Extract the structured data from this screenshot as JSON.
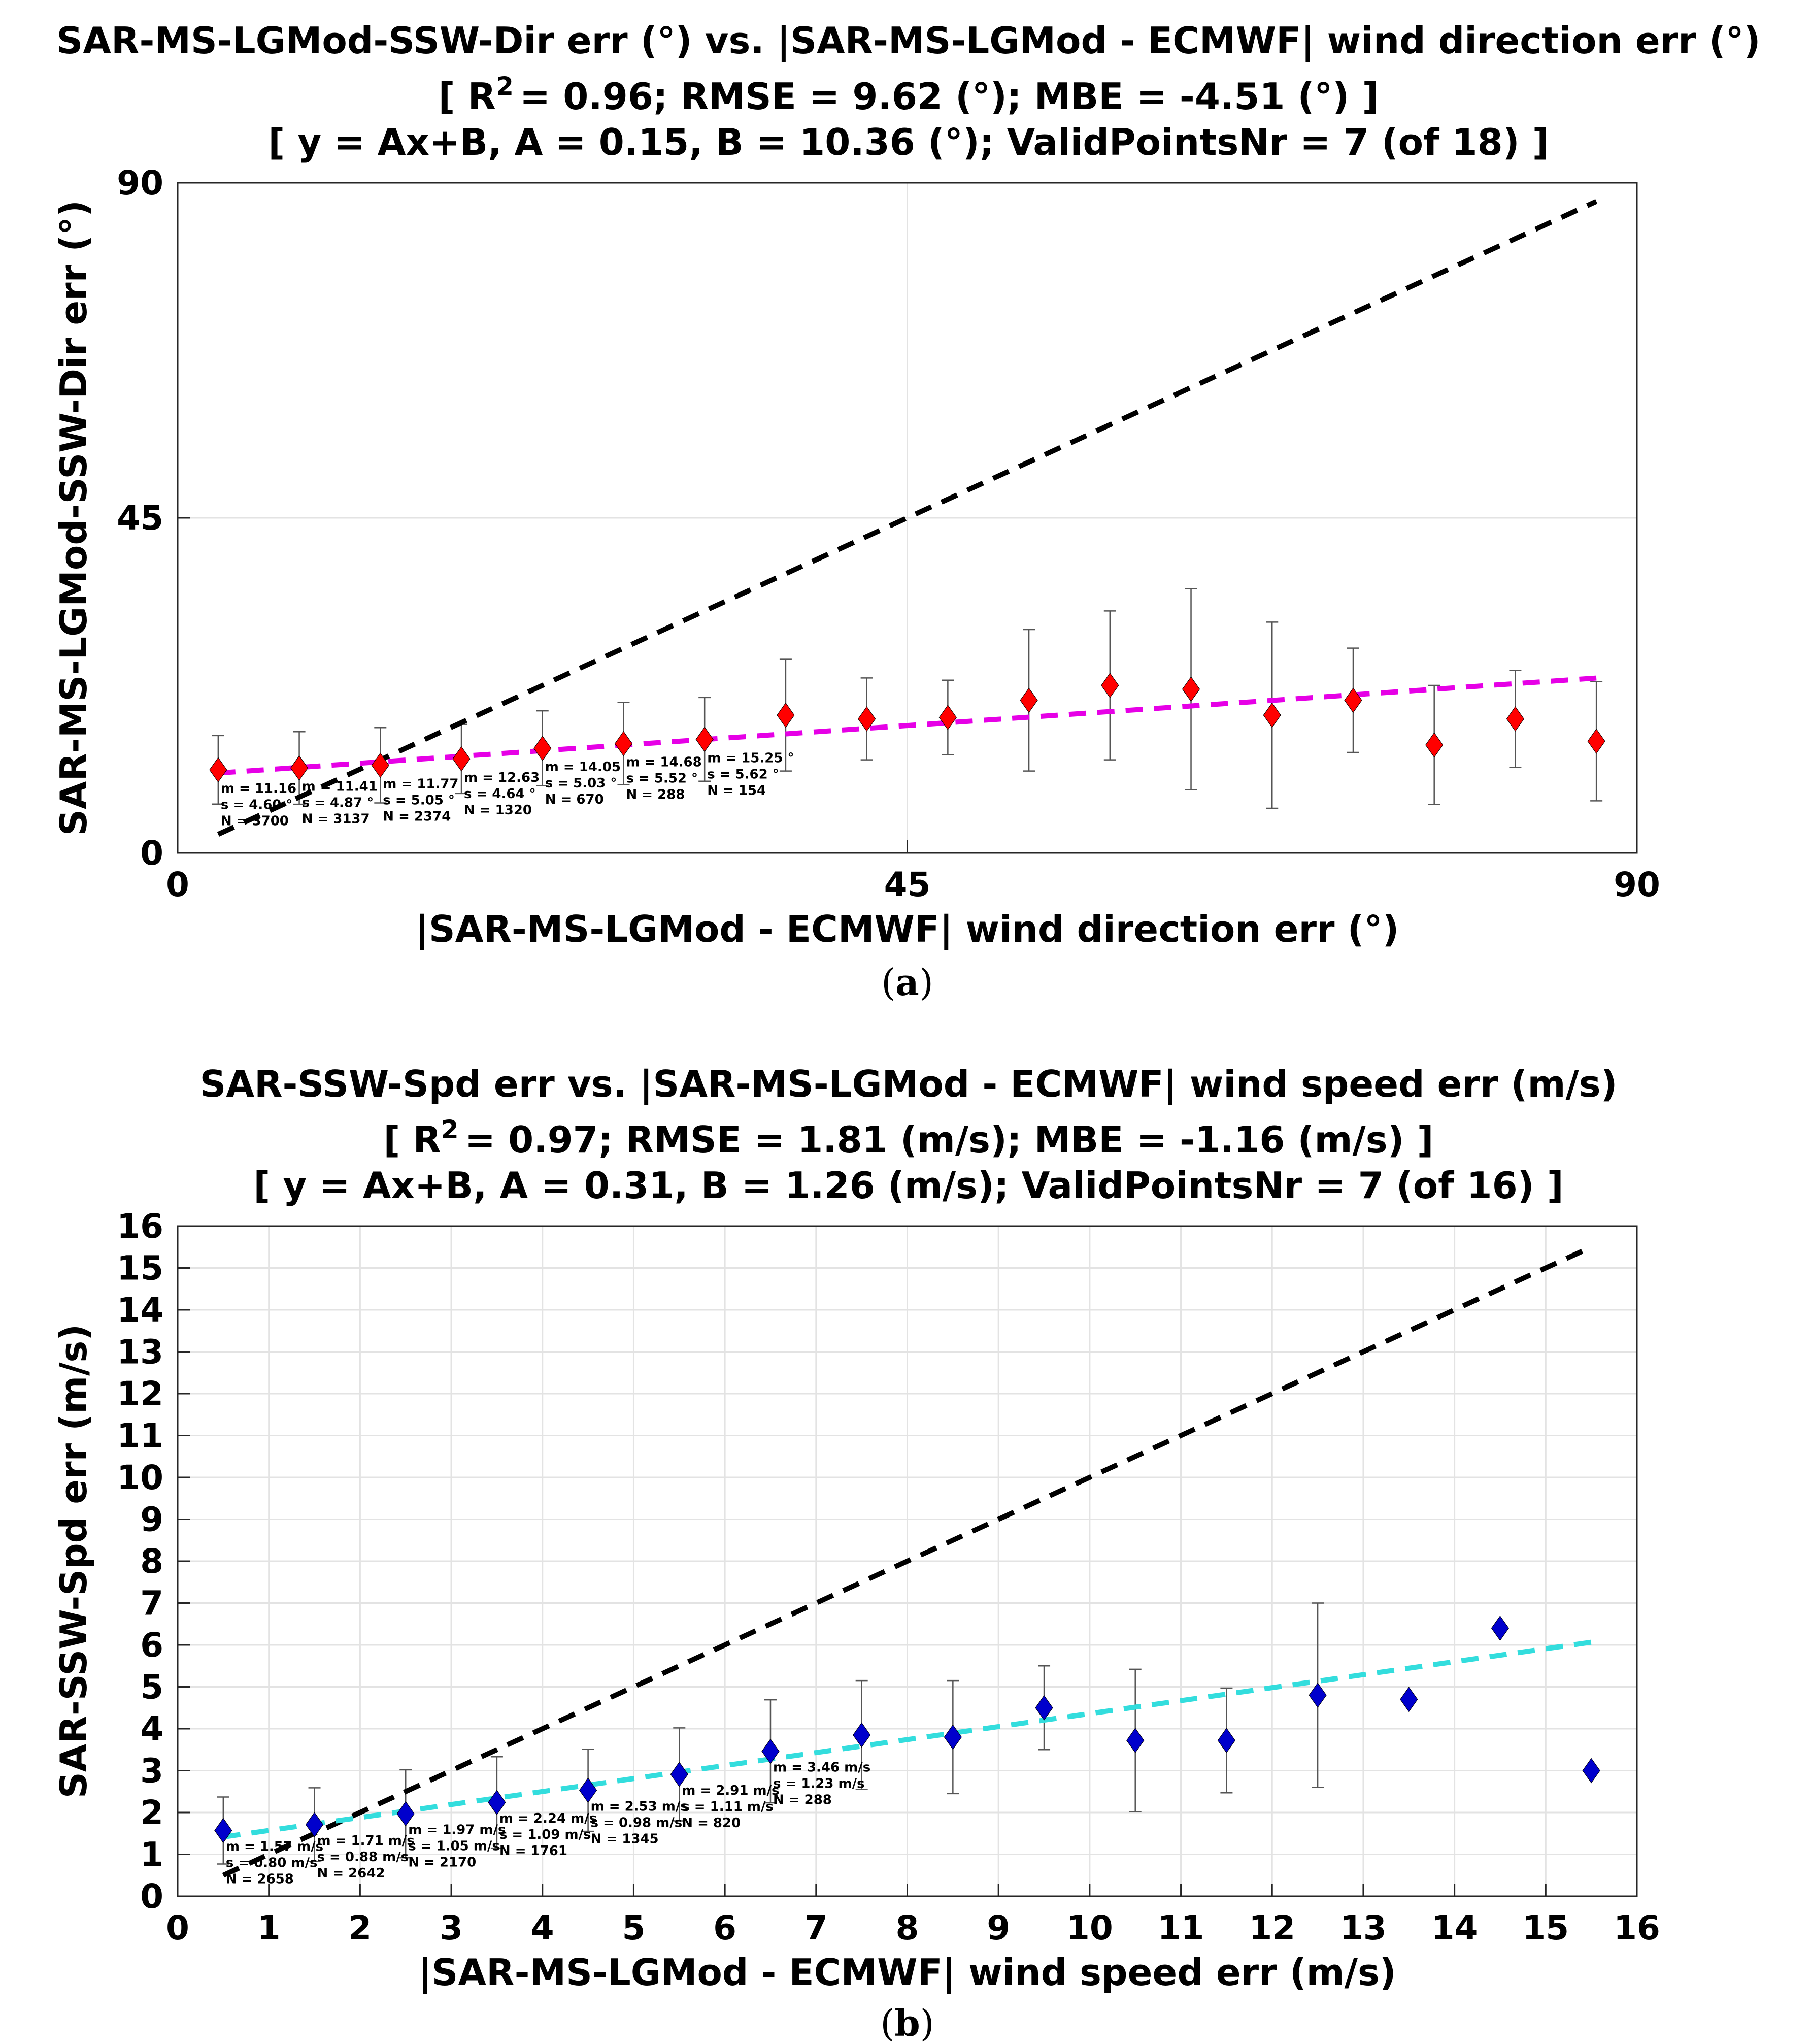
{
  "chart_data": [
    {
      "type": "scatter",
      "panel_label": "a",
      "title_lines": [
        "SAR-MS-LGMod-SSW-Dir err (°) vs. |SAR-MS-LGMod - ECMWF| wind direction err (°)",
        "[ R",
        "= 0.96; RMSE = 9.62 (°); MBE = -4.51 (°) ]",
        "[ y = Ax+B, A = 0.15, B = 10.36 (°); ValidPointsNr = 7 (of 18) ]"
      ],
      "r2_superscript": "2",
      "xlabel": "|SAR-MS-LGMod - ECMWF| wind direction err (°)",
      "ylabel": "SAR-MS-LGMod-SSW-Dir err (°)",
      "xlim": [
        0,
        90
      ],
      "ylim": [
        0,
        90
      ],
      "xticks": [
        0,
        45,
        90
      ],
      "yticks": [
        0,
        45,
        90
      ],
      "grid": true,
      "marker_color": "#ff0000",
      "fit_color": "#e600e6",
      "identity_color": "#000000",
      "fit": {
        "A": 0.15,
        "B": 10.36,
        "x_range": [
          2.5,
          87.5
        ]
      },
      "identity_range": [
        2.5,
        87.5
      ],
      "points": [
        {
          "x": 2.5,
          "y": 11.16,
          "s": 4.6
        },
        {
          "x": 7.5,
          "y": 11.41,
          "s": 4.87
        },
        {
          "x": 12.5,
          "y": 11.77,
          "s": 5.05
        },
        {
          "x": 17.5,
          "y": 12.63,
          "s": 4.64
        },
        {
          "x": 22.5,
          "y": 14.05,
          "s": 5.03
        },
        {
          "x": 27.5,
          "y": 14.68,
          "s": 5.52
        },
        {
          "x": 32.5,
          "y": 15.25,
          "s": 5.62
        },
        {
          "x": 37.5,
          "y": 18.5,
          "s": 7.5
        },
        {
          "x": 42.5,
          "y": 18.0,
          "s": 5.5
        },
        {
          "x": 47.5,
          "y": 18.2,
          "s": 5.0
        },
        {
          "x": 52.5,
          "y": 20.5,
          "s": 9.5
        },
        {
          "x": 57.5,
          "y": 22.5,
          "s": 10.0
        },
        {
          "x": 62.5,
          "y": 22.0,
          "s": 13.5
        },
        {
          "x": 67.5,
          "y": 18.5,
          "s": 12.5
        },
        {
          "x": 72.5,
          "y": 20.5,
          "s": 7.0
        },
        {
          "x": 77.5,
          "y": 14.5,
          "s": 8.0
        },
        {
          "x": 82.5,
          "y": 18.0,
          "s": 6.5
        },
        {
          "x": 87.5,
          "y": 15.0,
          "s": 8.0
        }
      ],
      "annotations": [
        {
          "x": 2.5,
          "m": "m = 11.16",
          "s": "s = 4.60 °",
          "n": "N = 3700"
        },
        {
          "x": 7.5,
          "m": "m = 11.41",
          "s": "s = 4.87 °",
          "n": "N = 3137"
        },
        {
          "x": 12.5,
          "m": "m = 11.77",
          "s": "s = 5.05 °",
          "n": "N = 2374"
        },
        {
          "x": 17.5,
          "m": "m = 12.63",
          "s": "s = 4.64 °",
          "n": "N = 1320"
        },
        {
          "x": 22.5,
          "m": "m = 14.05",
          "s": "s = 5.03 °",
          "n": "N = 670"
        },
        {
          "x": 27.5,
          "m": "m = 14.68",
          "s": "s = 5.52 °",
          "n": "N = 288"
        },
        {
          "x": 32.5,
          "m": "m = 15.25 °",
          "s": "s = 5.62 °",
          "n": "N = 154"
        }
      ]
    },
    {
      "type": "scatter",
      "panel_label": "b",
      "title_lines": [
        "SAR-SSW-Spd err vs. |SAR-MS-LGMod - ECMWF| wind speed err (m/s)",
        "[ R",
        "= 0.97; RMSE = 1.81 (m/s); MBE = -1.16 (m/s) ]",
        "[ y = Ax+B, A = 0.31, B = 1.26 (m/s); ValidPointsNr = 7 (of 16) ]"
      ],
      "r2_superscript": "2",
      "xlabel": "|SAR-MS-LGMod - ECMWF| wind speed err (m/s)",
      "ylabel": "SAR-SSW-Spd err (m/s)",
      "xlim": [
        0,
        16
      ],
      "ylim": [
        0,
        16
      ],
      "xticks": [
        0,
        1,
        2,
        3,
        4,
        5,
        6,
        7,
        8,
        9,
        10,
        11,
        12,
        13,
        14,
        15,
        16
      ],
      "yticks": [
        0,
        1,
        2,
        3,
        4,
        5,
        6,
        7,
        8,
        9,
        10,
        11,
        12,
        13,
        14,
        15,
        16
      ],
      "grid": true,
      "marker_color": "#0000cc",
      "fit_color": "#33dddd",
      "identity_color": "#000000",
      "fit": {
        "A": 0.31,
        "B": 1.26,
        "x_range": [
          0.5,
          15.5
        ]
      },
      "identity_range": [
        0.5,
        15.5
      ],
      "points": [
        {
          "x": 0.5,
          "y": 1.57,
          "s": 0.8
        },
        {
          "x": 1.5,
          "y": 1.71,
          "s": 0.88
        },
        {
          "x": 2.5,
          "y": 1.97,
          "s": 1.05
        },
        {
          "x": 3.5,
          "y": 2.24,
          "s": 1.09
        },
        {
          "x": 4.5,
          "y": 2.53,
          "s": 0.98
        },
        {
          "x": 5.5,
          "y": 2.91,
          "s": 1.11
        },
        {
          "x": 6.5,
          "y": 3.46,
          "s": 1.23
        },
        {
          "x": 7.5,
          "y": 3.85,
          "s": 1.3
        },
        {
          "x": 8.5,
          "y": 3.8,
          "s": 1.35
        },
        {
          "x": 9.5,
          "y": 4.5,
          "s": 1.0
        },
        {
          "x": 10.5,
          "y": 3.72,
          "s": 1.7
        },
        {
          "x": 11.5,
          "y": 3.72,
          "s": 1.25
        },
        {
          "x": 12.5,
          "y": 4.8,
          "s": 2.2
        },
        {
          "x": 13.5,
          "y": 4.7,
          "s": 0
        },
        {
          "x": 14.5,
          "y": 6.4,
          "s": 0
        },
        {
          "x": 15.5,
          "y": 3.0,
          "s": 0
        }
      ],
      "annotations": [
        {
          "x": 0.5,
          "m": "m = 1.57 m/s",
          "s": "s = 0.80 m/s",
          "n": "N = 2658"
        },
        {
          "x": 1.5,
          "m": "m = 1.71 m/s",
          "s": "s = 0.88 m/s",
          "n": "N = 2642"
        },
        {
          "x": 2.5,
          "m": "m = 1.97 m/s",
          "s": "s = 1.05 m/s",
          "n": "N = 2170"
        },
        {
          "x": 3.5,
          "m": "m = 2.24 m/s",
          "s": "s = 1.09 m/s",
          "n": "N = 1761"
        },
        {
          "x": 4.5,
          "m": "m = 2.53 m/s",
          "s": "s = 0.98 m/s",
          "n": "N = 1345"
        },
        {
          "x": 5.5,
          "m": "m = 2.91 m/s",
          "s": "s = 1.11 m/s",
          "n": "N = 820"
        },
        {
          "x": 6.5,
          "m": "m = 3.46 m/s",
          "s": "s = 1.23 m/s",
          "n": "N = 288"
        }
      ]
    }
  ]
}
